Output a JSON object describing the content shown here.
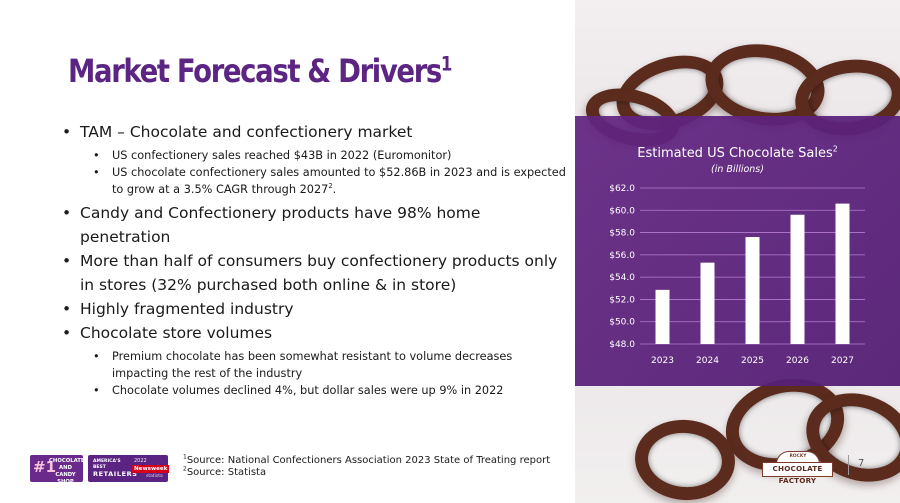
{
  "slide": {
    "title": "Market Forecast & Drivers",
    "title_sup": "1",
    "page_number": "7"
  },
  "bullets": [
    {
      "level": 1,
      "text": "TAM – Chocolate and confectionery market"
    },
    {
      "level": 2,
      "text": "US confectionery sales reached $43B in 2022 (Euromonitor)"
    },
    {
      "level": 2,
      "text": "US chocolate confectionery sales amounted to $52.86B in 2023 and is expected to grow at a 3.5% CAGR through 2027",
      "sup": "2",
      "tail": "."
    },
    {
      "level": 1,
      "text": "Candy and Confectionery products have 98% home penetration"
    },
    {
      "level": 1,
      "text": "More than half of consumers buy confectionery products only in stores (32% purchased both online & in store)"
    },
    {
      "level": 1,
      "text": "Highly fragmented industry"
    },
    {
      "level": 1,
      "text": "Chocolate store volumes"
    },
    {
      "level": 2,
      "text": "Premium chocolate has been somewhat resistant to volume decreases impacting the rest of the industry"
    },
    {
      "level": 2,
      "text": "Chocolate volumes declined 4%, but dollar sales were up 9% in 2022"
    }
  ],
  "sources": {
    "line1_sup": "1",
    "line1": "Source: National Confectioners Association 2023 State of Treating report",
    "line2_sup": "2",
    "line2": "Source: Statista"
  },
  "badges": {
    "rank": "#1",
    "rank_text": "CHOCOLATE AND CANDY SHOP",
    "award_top": "AMERICA'S BEST",
    "award_main": "RETAILERS",
    "award_year": "2022",
    "award_brand": "Newsweek",
    "award_partner": "statista"
  },
  "logo": {
    "top": "ROCKY MOUNTAIN",
    "main": "CHOCOLATE FACTORY"
  },
  "chart_data": {
    "type": "bar",
    "title": "Estimated US Chocolate Sales",
    "title_sup": "2",
    "subtitle": "(in Billions)",
    "categories": [
      "2023",
      "2024",
      "2025",
      "2026",
      "2027"
    ],
    "values": [
      52.86,
      55.3,
      57.6,
      59.6,
      60.6
    ],
    "ylim": [
      48.0,
      62.0
    ],
    "yticks": [
      "$48.0",
      "$50.0",
      "$52.0",
      "$54.0",
      "$56.0",
      "$58.0",
      "$60.0",
      "$62.0"
    ],
    "ytick_values": [
      48,
      50,
      52,
      54,
      56,
      58,
      60,
      62
    ],
    "grid": true,
    "bar_color": "#ffffff",
    "grid_color": "#b77bd0"
  },
  "colors": {
    "brand_purple": "#5c2583",
    "panel_purple": "#622582"
  }
}
